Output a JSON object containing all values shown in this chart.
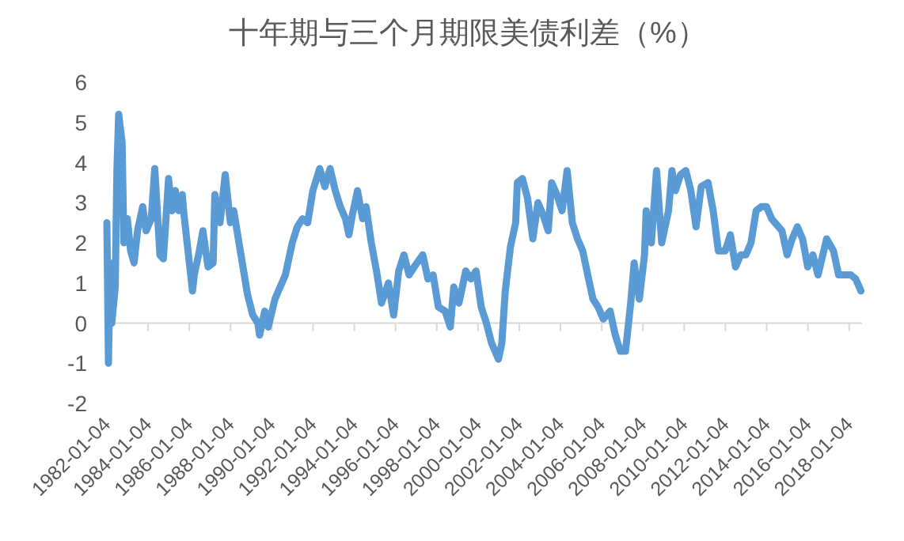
{
  "chart_data": {
    "type": "line",
    "title": "十年期与三个月期限美债利差（%）",
    "xlim": [
      "1982-01-04",
      "2018-08-20"
    ],
    "ylim": [
      -2,
      6
    ],
    "yticks": [
      -2,
      -1,
      0,
      1,
      2,
      3,
      4,
      5,
      6
    ],
    "xticks": [
      "1982-01-04",
      "1984-01-04",
      "1986-01-04",
      "1988-01-04",
      "1990-01-04",
      "1992-01-04",
      "1994-01-04",
      "1996-01-04",
      "1998-01-04",
      "2000-01-04",
      "2002-01-04",
      "2004-01-04",
      "2006-01-04",
      "2008-01-04",
      "2010-01-04",
      "2012-01-04",
      "2014-01-04",
      "2016-01-04",
      "2018-01-04"
    ],
    "x": [
      "1982-01-04",
      "1982-02",
      "1982-03",
      "1982-04",
      "1982-06",
      "1982-07",
      "1982-08",
      "1982-10",
      "1982-11",
      "1983-01",
      "1983-03",
      "1983-05",
      "1983-07",
      "1983-10",
      "1983-12",
      "1984-03",
      "1984-05",
      "1984-08",
      "1984-10",
      "1985-01",
      "1985-03",
      "1985-05",
      "1985-07",
      "1985-09",
      "1985-10",
      "1986-03",
      "1986-04",
      "1986-07",
      "1986-09",
      "1986-12",
      "1987-03",
      "1987-04",
      "1987-07",
      "1987-10",
      "1988-01",
      "1988-03",
      "1988-06",
      "1988-11",
      "1989-02",
      "1989-05",
      "1989-06",
      "1989-09",
      "1989-11",
      "1990-03",
      "1990-06",
      "1990-09",
      "1990-11",
      "1991-01",
      "1991-04",
      "1991-07",
      "1991-10",
      "1992-01",
      "1992-05",
      "1992-08",
      "1992-11",
      "1993-02",
      "1993-05",
      "1993-08",
      "1993-10",
      "1993-12",
      "1994-03",
      "1994-06",
      "1994-08",
      "1994-11",
      "1995-02",
      "1995-05",
      "1995-09",
      "1995-12",
      "1996-03",
      "1996-06",
      "1996-09",
      "1996-12",
      "1997-05",
      "1997-08",
      "1997-11",
      "1998-02",
      "1998-06",
      "1998-09",
      "1998-11",
      "1999-02",
      "1999-06",
      "1999-09",
      "1999-12",
      "2000-03",
      "2000-06",
      "2000-09",
      "2001-01",
      "2001-03",
      "2001-05",
      "2001-08",
      "2001-11",
      "2001-12",
      "2002-03",
      "2002-06",
      "2002-09",
      "2002-12",
      "2003-03",
      "2003-06",
      "2003-08",
      "2003-11",
      "2004-02",
      "2004-05",
      "2004-08",
      "2004-11",
      "2005-02",
      "2005-05",
      "2005-08",
      "2005-11",
      "2006-02",
      "2006-06",
      "2006-09",
      "2006-12",
      "2007-03",
      "2007-06",
      "2007-08",
      "2007-11",
      "2008-02",
      "2008-03",
      "2008-06",
      "2008-09",
      "2008-12",
      "2009-04",
      "2009-06",
      "2009-08",
      "2009-11",
      "2010-02",
      "2010-05",
      "2010-08",
      "2010-11",
      "2011-03",
      "2011-06",
      "2011-09",
      "2012-01",
      "2012-04",
      "2012-07",
      "2012-10",
      "2013-01",
      "2013-04",
      "2013-07",
      "2013-10",
      "2014-01",
      "2014-04",
      "2014-10",
      "2015-01",
      "2015-04",
      "2015-07",
      "2015-10",
      "2016-01",
      "2016-04",
      "2016-07",
      "2016-12",
      "2017-04",
      "2017-07",
      "2017-11",
      "2018-02",
      "2018-05",
      "2018-08"
    ],
    "series": [
      {
        "color": "#5b9bd5",
        "values": [
          2.5,
          -1.0,
          1.5,
          0.0,
          0.9,
          3.8,
          5.2,
          4.5,
          2.0,
          2.6,
          1.8,
          1.5,
          2.3,
          2.9,
          2.3,
          2.6,
          3.85,
          1.7,
          1.6,
          3.6,
          2.8,
          3.3,
          2.8,
          3.2,
          2.7,
          0.8,
          1.2,
          1.8,
          2.3,
          1.4,
          1.5,
          3.2,
          2.5,
          3.7,
          2.5,
          2.8,
          2.0,
          0.7,
          0.2,
          0.0,
          -0.3,
          0.3,
          -0.1,
          0.6,
          0.9,
          1.2,
          1.6,
          2.0,
          2.4,
          2.6,
          2.5,
          3.3,
          3.85,
          3.4,
          3.85,
          3.3,
          2.9,
          2.6,
          2.2,
          2.7,
          3.3,
          2.6,
          2.9,
          2.0,
          1.3,
          0.5,
          1.0,
          0.2,
          1.3,
          1.7,
          1.2,
          1.4,
          1.7,
          1.1,
          1.2,
          0.4,
          0.3,
          -0.1,
          0.9,
          0.5,
          1.3,
          1.1,
          1.3,
          0.4,
          0.0,
          -0.5,
          -0.9,
          -0.5,
          0.8,
          1.9,
          2.5,
          3.5,
          3.6,
          3.1,
          2.1,
          3.0,
          2.7,
          2.3,
          3.5,
          3.2,
          2.8,
          3.8,
          2.5,
          2.1,
          1.8,
          1.2,
          0.6,
          0.4,
          0.1,
          0.3,
          -0.3,
          -0.7,
          -0.7,
          0.5,
          1.5,
          0.6,
          1.7,
          2.8,
          2.0,
          3.8,
          2.0,
          2.8,
          3.8,
          3.3,
          3.7,
          3.8,
          3.3,
          2.4,
          3.4,
          3.5,
          2.8,
          1.8,
          1.8,
          2.2,
          1.4,
          1.7,
          1.7,
          2.0,
          2.8,
          2.9,
          2.9,
          2.6,
          2.3,
          1.7,
          2.1,
          2.4,
          2.1,
          1.4,
          1.7,
          1.2,
          2.1,
          1.8,
          1.2,
          1.2,
          1.2,
          1.1,
          0.8
        ]
      }
    ]
  }
}
